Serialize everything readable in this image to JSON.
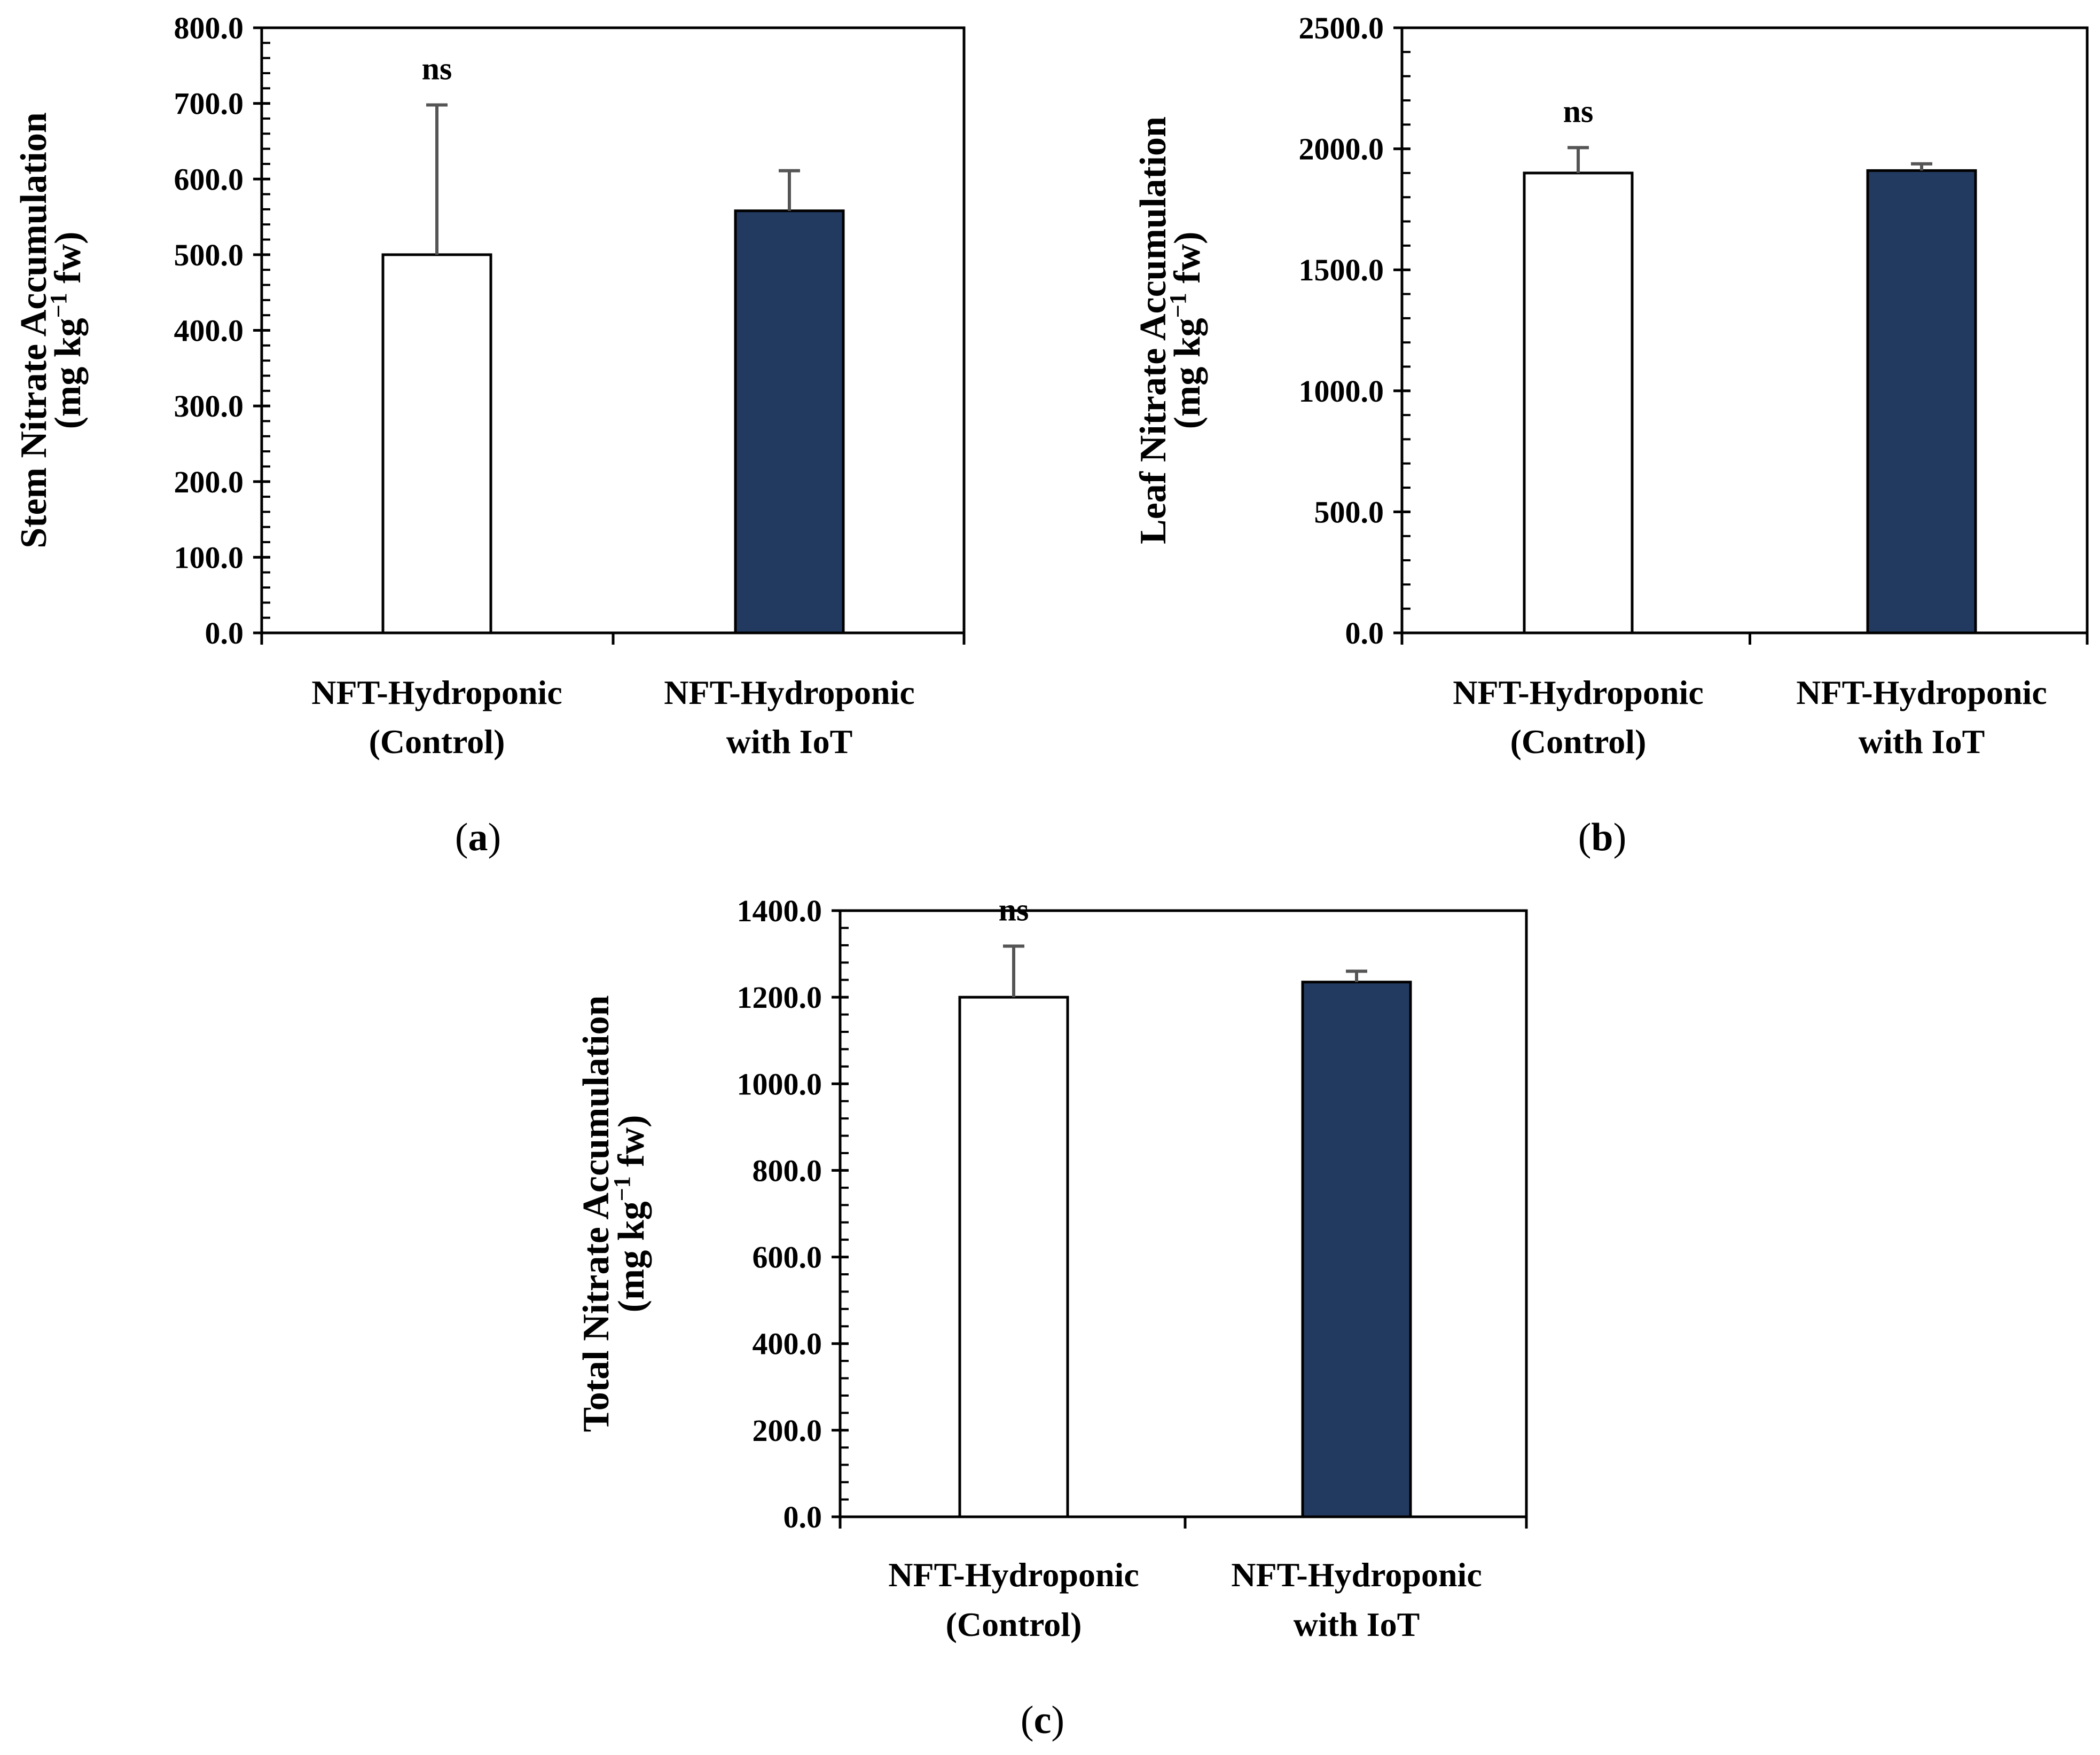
{
  "chart_data": [
    {
      "id": "a",
      "type": "bar",
      "panel_label": "a",
      "categories": [
        {
          "line1": "NFT-Hydroponic",
          "line2": "(Control)"
        },
        {
          "line1": "NFT-Hydroponic",
          "line2": "with IoT"
        }
      ],
      "values": [
        500.0,
        558.0
      ],
      "errors": [
        198.0,
        53.0
      ],
      "bar_colors": [
        "#ffffff",
        "#233a60"
      ],
      "ylabel": {
        "line1": "Stem Nitrate Accumulation",
        "pre": "(mg kg",
        "sup": "−1",
        "post": " fw)"
      },
      "ylim": [
        0,
        800
      ],
      "yticks": [
        0,
        100,
        200,
        300,
        400,
        500,
        600,
        700,
        800
      ],
      "tick_labels": [
        "0.0",
        "100.0",
        "200.0",
        "300.0",
        "400.0",
        "500.0",
        "600.0",
        "700.0",
        "800.0"
      ],
      "minor_per_major": 5,
      "annotation": "ns"
    },
    {
      "id": "b",
      "type": "bar",
      "panel_label": "b",
      "categories": [
        {
          "line1": "NFT-Hydroponic",
          "line2": "(Control)"
        },
        {
          "line1": "NFT-Hydroponic",
          "line2": "with IoT"
        }
      ],
      "values": [
        1900.0,
        1910.0
      ],
      "errors": [
        105.0,
        28.0
      ],
      "bar_colors": [
        "#ffffff",
        "#233a60"
      ],
      "ylabel": {
        "line1": "Leaf Nitrate Accumulation",
        "pre": "(mg kg",
        "sup": "−1",
        "post": " fw)"
      },
      "ylim": [
        0,
        2500
      ],
      "yticks": [
        0,
        500,
        1000,
        1500,
        2000,
        2500
      ],
      "tick_labels": [
        "0.0",
        "500.0",
        "1000.0",
        "1500.0",
        "2000.0",
        "2500.0"
      ],
      "minor_per_major": 5,
      "annotation": "ns"
    },
    {
      "id": "c",
      "type": "bar",
      "panel_label": "c",
      "categories": [
        {
          "line1": "NFT-Hydroponic",
          "line2": "(Control)"
        },
        {
          "line1": "NFT-Hydroponic",
          "line2": "with IoT"
        }
      ],
      "values": [
        1200.0,
        1235.0
      ],
      "errors": [
        118.0,
        25.0
      ],
      "bar_colors": [
        "#ffffff",
        "#233a60"
      ],
      "ylabel": {
        "line1": "Total Nitrate Accumulation",
        "pre": "(mg kg",
        "sup": "−1",
        "post": " fw)"
      },
      "ylim": [
        0,
        1400
      ],
      "yticks": [
        0,
        200,
        400,
        600,
        800,
        1000,
        1200,
        1400
      ],
      "tick_labels": [
        "0.0",
        "200.0",
        "400.0",
        "600.0",
        "800.0",
        "1000.0",
        "1200.0",
        "1400.0"
      ],
      "minor_per_major": 5,
      "annotation": "ns"
    }
  ]
}
